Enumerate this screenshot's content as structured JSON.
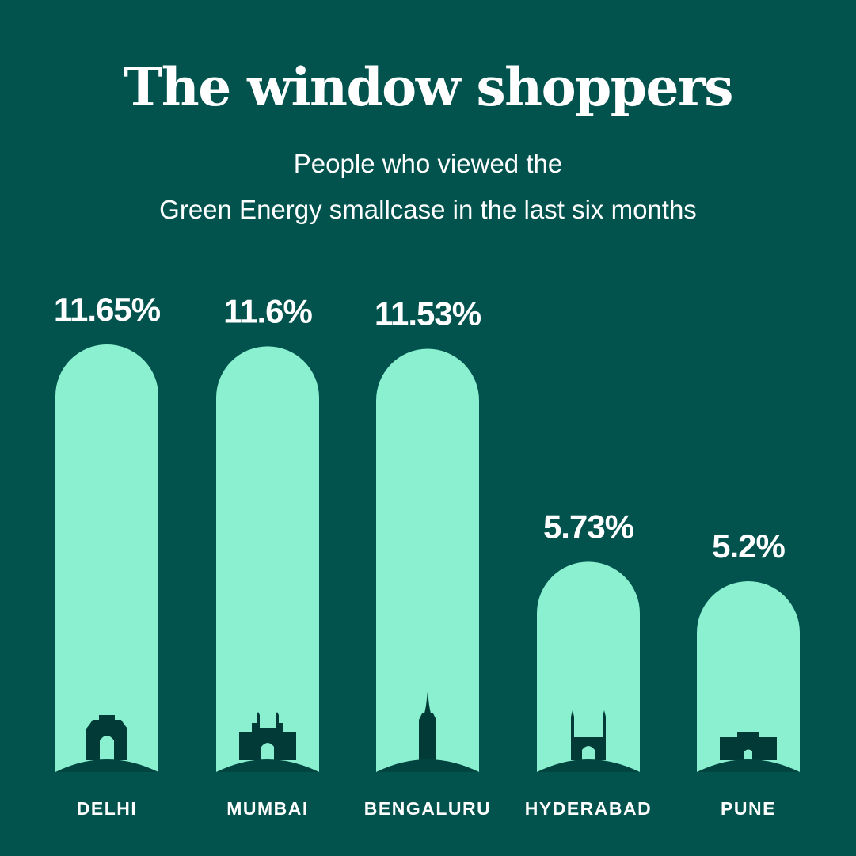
{
  "title": "The window shoppers",
  "subtitle_lines": [
    "People who viewed the",
    "Green Energy smallcase in the last six months"
  ],
  "colors": {
    "background": "#02534e",
    "bar": "#8af0d0",
    "landmark": "#013a36",
    "ground": "#02443f",
    "text": "#ffffff"
  },
  "chart_data": {
    "type": "bar",
    "title": "The window shoppers",
    "subtitle": "People who viewed the Green Energy smallcase in the last six months",
    "categories": [
      "DELHI",
      "MUMBAI",
      "BENGALURU",
      "HYDERABAD",
      "PUNE"
    ],
    "values": [
      11.65,
      11.6,
      11.53,
      5.73,
      5.2
    ],
    "value_labels": [
      "11.65%",
      "11.6%",
      "11.53%",
      "5.73%",
      "5.2%"
    ],
    "unit": "%",
    "icons": [
      "india-gate-icon",
      "gateway-of-india-icon",
      "bengaluru-tower-icon",
      "charminar-icon",
      "shaniwar-wada-icon"
    ],
    "grid": false,
    "legend": "none"
  }
}
